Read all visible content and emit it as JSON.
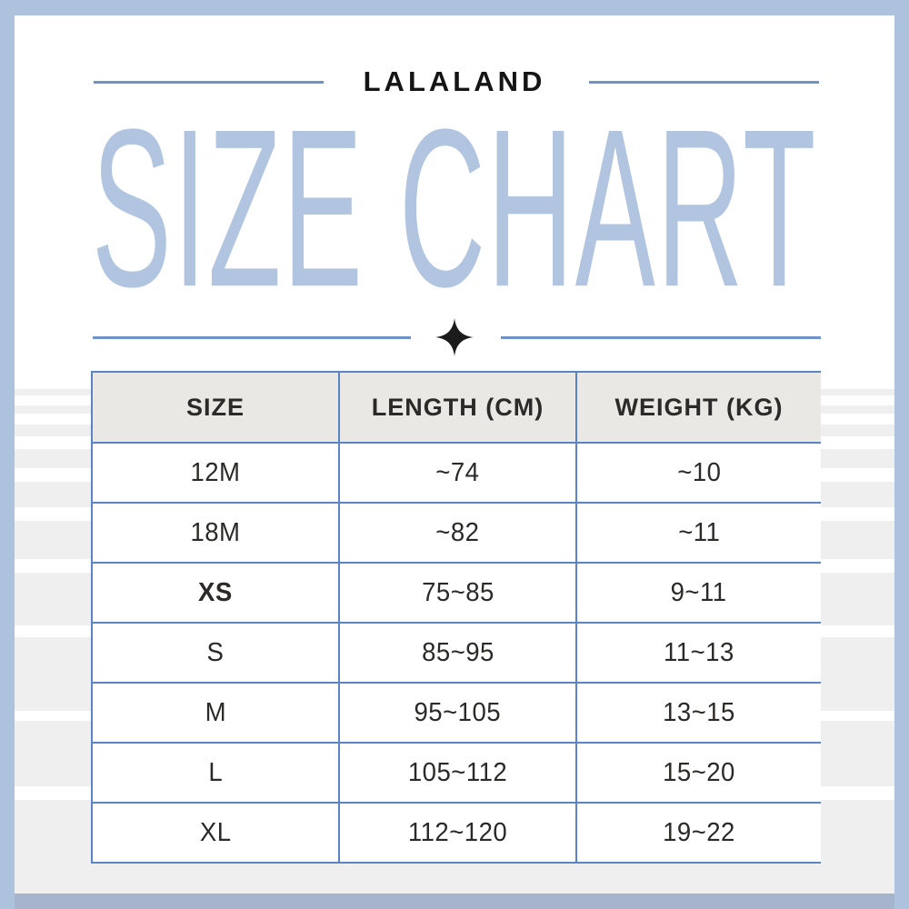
{
  "colors": {
    "frame": "#adc2dd",
    "bottom_band": "#a6b5cd",
    "title": "#b1c5e0",
    "divider_line": "#6e93c8",
    "table_border": "#5b84c6",
    "table_header_bg": "#e9e8e4",
    "text": "#2b2a28",
    "star": "#1c1c1c",
    "stripe": "#f0efef"
  },
  "header": {
    "brand": "LALALAND",
    "title": "SIZE CHART"
  },
  "divider": {
    "star_icon": "four-point-sparkle"
  },
  "table": {
    "columns": [
      "SIZE",
      "LENGTH (CM)",
      "WEIGHT (KG)"
    ],
    "rows": [
      {
        "size": "12M",
        "length": "~74",
        "weight": "~10",
        "emphasis": false
      },
      {
        "size": "18M",
        "length": "~82",
        "weight": "~11",
        "emphasis": false
      },
      {
        "size": "XS",
        "length": "75~85",
        "weight": "9~11",
        "emphasis": true
      },
      {
        "size": "S",
        "length": "85~95",
        "weight": "11~13",
        "emphasis": false
      },
      {
        "size": "M",
        "length": "95~105",
        "weight": "13~15",
        "emphasis": false
      },
      {
        "size": "L",
        "length": "105~112",
        "weight": "15~20",
        "emphasis": false
      },
      {
        "size": "XL",
        "length": "112~120",
        "weight": "19~22",
        "emphasis": false
      }
    ]
  },
  "chart_data": {
    "type": "table",
    "title": "SIZE CHART",
    "subtitle": "LALALAND",
    "columns": [
      "SIZE",
      "LENGTH (CM)",
      "WEIGHT (KG)"
    ],
    "rows": [
      [
        "12M",
        "~74",
        "~10"
      ],
      [
        "18M",
        "~82",
        "~11"
      ],
      [
        "XS",
        "75~85",
        "9~11"
      ],
      [
        "S",
        "85~95",
        "11~13"
      ],
      [
        "M",
        "95~105",
        "13~15"
      ],
      [
        "L",
        "105~112",
        "15~20"
      ],
      [
        "XL",
        "112~120",
        "19~22"
      ]
    ]
  }
}
